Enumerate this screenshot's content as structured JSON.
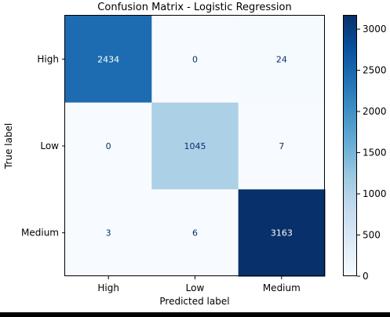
{
  "chart_data": {
    "type": "heatmap",
    "title": "Confusion Matrix - Logistic Regression",
    "xlabel": "Predicted label",
    "ylabel": "True label",
    "x_categories": [
      "High",
      "Low",
      "Medium"
    ],
    "y_categories": [
      "High",
      "Low",
      "Medium"
    ],
    "values": [
      [
        2434,
        0,
        24
      ],
      [
        0,
        1045,
        7
      ],
      [
        3,
        6,
        3163
      ]
    ],
    "colormap": "Blues",
    "colorbar": {
      "range": [
        0,
        3163
      ],
      "ticks": [
        0,
        500,
        1000,
        1500,
        2000,
        2500,
        3000
      ]
    },
    "colors": {
      "low": "#f7fbff",
      "high": "#08306b",
      "text_dark_cell": "#ffffff",
      "text_light_cell": "#08306b"
    }
  }
}
